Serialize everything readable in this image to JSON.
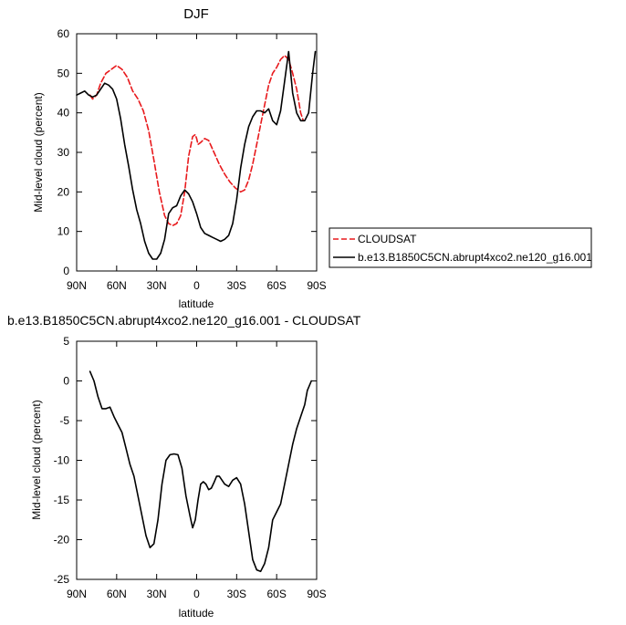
{
  "colors": {
    "cloudsat": "#e8191c",
    "model": "#000000",
    "axis": "#000000",
    "background": "#ffffff"
  },
  "chart_data": [
    {
      "type": "line",
      "title": "DJF",
      "xlabel": "latitude",
      "ylabel": "Mid-level cloud (percent)",
      "xlim": [
        90,
        -90
      ],
      "ylim": [
        0,
        60
      ],
      "x_ticks": [
        90,
        60,
        30,
        0,
        -30,
        -60,
        -90
      ],
      "x_tick_labels": [
        "90N",
        "60N",
        "30N",
        "0",
        "30S",
        "60S",
        "90S"
      ],
      "y_ticks": [
        0,
        10,
        20,
        30,
        40,
        50,
        60
      ],
      "y_tick_labels": [
        "0",
        "10",
        "20",
        "30",
        "40",
        "50",
        "60"
      ],
      "grid": false,
      "legend_placement": "right",
      "series": [
        {
          "name": "CLOUDSAT",
          "style": "dashed",
          "color": "#e8191c",
          "x": [
            80,
            78,
            75,
            72,
            68,
            64,
            60,
            56,
            52,
            48,
            44,
            40,
            36,
            32,
            28,
            24,
            21,
            18,
            15,
            12,
            9,
            6,
            3,
            1,
            0,
            -1,
            -3,
            -6,
            -9,
            -13,
            -17,
            -21,
            -25,
            -29,
            -33,
            -36,
            -39,
            -42,
            -45,
            -48,
            -51,
            -54,
            -57,
            -60,
            -63,
            -66,
            -69,
            -72,
            -75,
            -78,
            -80
          ],
          "values": [
            44.5,
            43.5,
            44.5,
            47.5,
            50,
            51,
            52,
            51,
            49,
            45.5,
            43.5,
            40.5,
            35.5,
            28,
            20,
            14,
            12,
            11.5,
            12,
            14,
            20,
            29,
            34,
            34.5,
            33.5,
            32,
            32.5,
            33.5,
            33,
            30,
            27,
            24.5,
            22.5,
            21,
            20,
            20.5,
            23,
            27,
            32,
            37,
            42,
            47,
            50,
            51.5,
            53.5,
            54.5,
            53.5,
            50,
            46,
            40,
            38
          ]
        },
        {
          "name": "b.e13.B1850C5CN.abrupt4xco2.ne120_g16.001",
          "style": "solid",
          "color": "#000000",
          "x": [
            90,
            87,
            84,
            81,
            78,
            75,
            72,
            69,
            66,
            63,
            60,
            57,
            54,
            51,
            48,
            45,
            42,
            39,
            36,
            33,
            30,
            27,
            24,
            21,
            18,
            15,
            12,
            9,
            6,
            3,
            0,
            -3,
            -6,
            -9,
            -12,
            -15,
            -18,
            -21,
            -24,
            -27,
            -30,
            -33,
            -36,
            -39,
            -42,
            -45,
            -48,
            -51,
            -54,
            -57,
            -60,
            -63,
            -66,
            -69,
            -72,
            -75,
            -78,
            -81,
            -84,
            -87,
            -89
          ],
          "values": [
            44.5,
            45,
            45.5,
            44.5,
            44,
            44.5,
            46,
            47.5,
            47,
            46,
            43.5,
            38.5,
            32,
            26.5,
            20.5,
            15.5,
            12,
            7.5,
            4.5,
            3,
            3,
            4.5,
            8,
            14.5,
            16,
            16.5,
            19,
            20.5,
            19.5,
            17.5,
            14.5,
            11,
            9.5,
            9,
            8.5,
            8,
            7.5,
            8,
            9,
            12,
            18,
            26,
            32,
            36.5,
            39,
            40.5,
            40.5,
            40,
            41,
            38,
            37,
            40.5,
            48,
            55.5,
            45,
            40,
            38,
            38,
            40,
            50,
            55.5
          ]
        }
      ]
    },
    {
      "type": "line",
      "title": "b.e13.B1850C5CN.abrupt4xco2.ne120_g16.001 - CLOUDSAT",
      "xlabel": "latitude",
      "ylabel": "Mid-level cloud (percent)",
      "xlim": [
        90,
        -90
      ],
      "ylim": [
        -25,
        5
      ],
      "x_ticks": [
        90,
        60,
        30,
        0,
        -30,
        -60,
        -90
      ],
      "x_tick_labels": [
        "90N",
        "60N",
        "30N",
        "0",
        "30S",
        "60S",
        "90S"
      ],
      "y_ticks": [
        -25,
        -20,
        -15,
        -10,
        -5,
        0,
        5
      ],
      "y_tick_labels": [
        "-25",
        "-20",
        "-15",
        "-10",
        "-5",
        "0",
        "5"
      ],
      "grid": false,
      "series": [
        {
          "style": "solid",
          "color": "#000000",
          "x": [
            80,
            77,
            74,
            71,
            68,
            65,
            62,
            59,
            56,
            53,
            50,
            47,
            44,
            41,
            38,
            35,
            32,
            29,
            26,
            23,
            20,
            17,
            14,
            11,
            8,
            5,
            3,
            1,
            -1,
            -3,
            -5,
            -7,
            -9,
            -11,
            -13,
            -15,
            -17,
            -19,
            -21,
            -24,
            -27,
            -30,
            -33,
            -36,
            -39,
            -42,
            -45,
            -48,
            -51,
            -54,
            -57,
            -60,
            -63,
            -66,
            -69,
            -72,
            -75,
            -78,
            -81,
            -83,
            -86
          ],
          "values": [
            1.2,
            0,
            -2,
            -3.5,
            -3.5,
            -3.3,
            -4.5,
            -5.5,
            -6.5,
            -8.5,
            -10.5,
            -12,
            -14.5,
            -17,
            -19.5,
            -21,
            -20.5,
            -17.5,
            -13,
            -10,
            -9.3,
            -9.2,
            -9.3,
            -11,
            -14.5,
            -17,
            -18.5,
            -17.5,
            -15,
            -13,
            -12.7,
            -13,
            -13.7,
            -13.5,
            -12.8,
            -12,
            -12,
            -12.5,
            -13,
            -13.3,
            -12.5,
            -12.2,
            -13,
            -15.5,
            -19,
            -22.5,
            -23.8,
            -24,
            -23,
            -21,
            -17.5,
            -16.5,
            -15.5,
            -13,
            -10.5,
            -8,
            -6,
            -4.5,
            -3,
            -1.2,
            0
          ]
        }
      ]
    }
  ]
}
